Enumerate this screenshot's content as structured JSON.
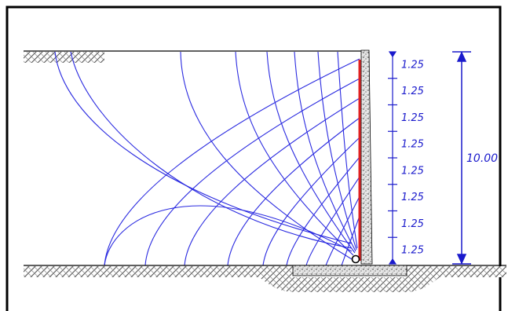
{
  "diagram": {
    "segment_labels": [
      "1.25",
      "1.25",
      "1.25",
      "1.25",
      "1.25",
      "1.25",
      "1.25",
      "1.25"
    ],
    "total_height_label": "10.00"
  },
  "colors": {
    "frame": "#000000",
    "flow_lines": "#2a2ae0",
    "dimension": "#1a1acc",
    "wall_face": "#e02020",
    "concrete_fill": "#bfbfbf",
    "soil_hatch": "#555555"
  }
}
